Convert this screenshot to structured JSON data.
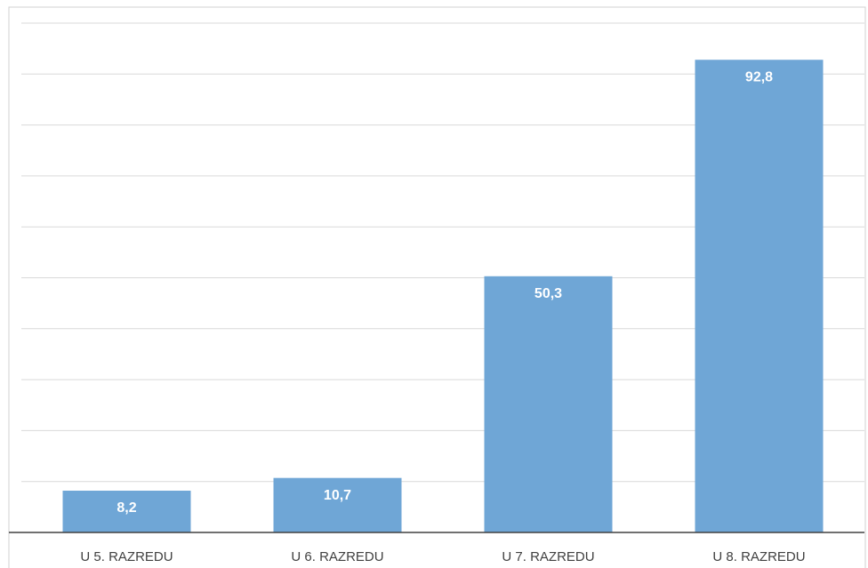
{
  "chart_data": {
    "type": "bar",
    "categories": [
      "U 5. RAZREDU",
      "U 6. RAZREDU",
      "U 7. RAZREDU",
      "U 8. RAZREDU"
    ],
    "values": [
      8.2,
      10.7,
      50.3,
      92.8
    ],
    "value_labels": [
      "8,2",
      "10,7",
      "50,3",
      "92,8"
    ],
    "color": "#6fa6d6",
    "ylim": [
      0,
      100
    ],
    "yticks": [
      0,
      10,
      20,
      30,
      40,
      50,
      60,
      70,
      80,
      90,
      100
    ],
    "grid": true
  }
}
